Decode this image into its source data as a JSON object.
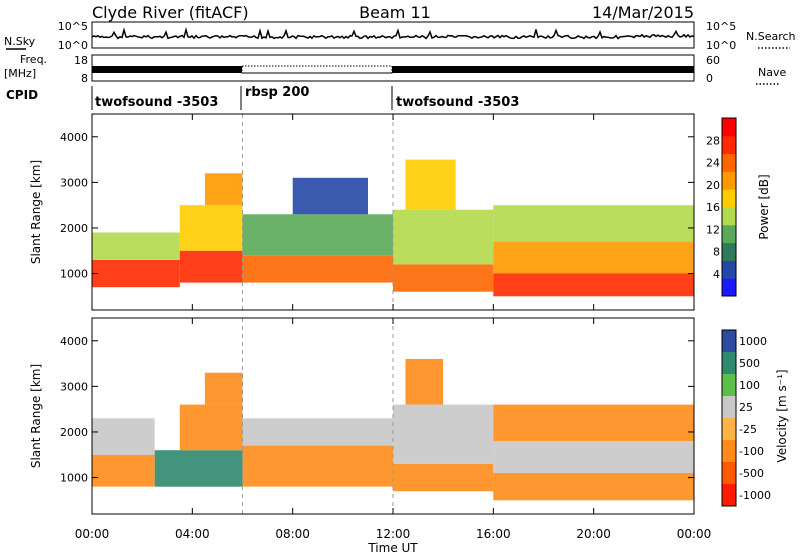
{
  "header": {
    "station": "Clyde River (fitACF)",
    "beam": "Beam 11",
    "date": "14/Mar/2015"
  },
  "sky_panel": {
    "left_label": "N.Sky",
    "right_label": "N.Search",
    "ticks_left": [
      "10^5",
      "10^0"
    ],
    "ticks_right": [
      "10^5",
      "10^0"
    ]
  },
  "freq_panel": {
    "left_label_1": "Freq.",
    "left_label_2": "[MHz]",
    "right_label": "Nave",
    "ticks_left": [
      "18",
      "8"
    ],
    "ticks_right": [
      "60",
      "0"
    ]
  },
  "cpid": {
    "label": "CPID",
    "segments": [
      {
        "name": "twofsound -3503",
        "start_hour": 0,
        "end_hour": 6
      },
      {
        "name": "rbsp 200",
        "start_hour": 6,
        "end_hour": 12
      },
      {
        "name": "twofsound -3503",
        "start_hour": 12,
        "end_hour": 24
      }
    ]
  },
  "colors": {
    "power_scale": [
      "#1a1aff",
      "#2448a6",
      "#2f7a5a",
      "#5aa85a",
      "#b3d94d",
      "#ffcc00",
      "#ff9900",
      "#ff6600",
      "#ff2a00",
      "#ff0000"
    ],
    "velocity_scale": [
      "#2b4aa0",
      "#2e8a6e",
      "#5bbf4a",
      "#c8c8c8",
      "#ffb347",
      "#ff8c1a",
      "#ff5a00",
      "#ff1a00"
    ]
  },
  "chart_data": [
    {
      "type": "heatmap",
      "panel": "power",
      "ylabel": "Slant Range [km]",
      "ylim": [
        200,
        4500
      ],
      "yticks": [
        "1000",
        "2000",
        "3000",
        "4000"
      ],
      "xlim": [
        0,
        24
      ],
      "colorbar_label": "Power [dB]",
      "colorbar_ticks": [
        "28",
        "24",
        "20",
        "16",
        "12",
        "8",
        "4"
      ],
      "colorbar_range": [
        0,
        32
      ],
      "bands": [
        {
          "x0": 0.0,
          "x1": 3.5,
          "y0": 700,
          "y1": 1300,
          "value": 26
        },
        {
          "x0": 0.0,
          "x1": 3.5,
          "y0": 1300,
          "y1": 1900,
          "value": 15
        },
        {
          "x0": 3.5,
          "x1": 6.0,
          "y0": 800,
          "y1": 1500,
          "value": 27
        },
        {
          "x0": 3.5,
          "x1": 6.0,
          "y0": 1500,
          "y1": 2500,
          "value": 16
        },
        {
          "x0": 4.5,
          "x1": 6.0,
          "y0": 2500,
          "y1": 3200,
          "value": 21
        },
        {
          "x0": 6.0,
          "x1": 12.0,
          "y0": 800,
          "y1": 1400,
          "value": 25
        },
        {
          "x0": 6.0,
          "x1": 12.0,
          "y0": 1400,
          "y1": 2300,
          "value": 11
        },
        {
          "x0": 8.0,
          "x1": 11.0,
          "y0": 2300,
          "y1": 3100,
          "value": 6
        },
        {
          "x0": 12.0,
          "x1": 16.0,
          "y0": 600,
          "y1": 1200,
          "value": 24
        },
        {
          "x0": 12.0,
          "x1": 16.0,
          "y0": 1200,
          "y1": 2400,
          "value": 13
        },
        {
          "x0": 12.5,
          "x1": 14.5,
          "y0": 2400,
          "y1": 3500,
          "value": 17
        },
        {
          "x0": 16.0,
          "x1": 24.0,
          "y0": 500,
          "y1": 1000,
          "value": 27
        },
        {
          "x0": 16.0,
          "x1": 24.0,
          "y0": 1000,
          "y1": 1700,
          "value": 20
        },
        {
          "x0": 16.0,
          "x1": 24.0,
          "y0": 1700,
          "y1": 2500,
          "value": 14
        }
      ]
    },
    {
      "type": "heatmap",
      "panel": "velocity",
      "ylabel": "Slant Range [km]",
      "ylim": [
        200,
        4500
      ],
      "yticks": [
        "1000",
        "2000",
        "3000",
        "4000"
      ],
      "xlim": [
        0,
        24
      ],
      "xticks": [
        "00:00",
        "04:00",
        "08:00",
        "12:00",
        "16:00",
        "20:00",
        "00:00"
      ],
      "xlabel": "Time UT",
      "colorbar_label": "Velocity [m s⁻¹]",
      "colorbar_ticks": [
        "1000",
        "500",
        "100",
        "25",
        "-25",
        "-100",
        "-500",
        "-1000"
      ],
      "bands": [
        {
          "x0": 0.0,
          "x1": 2.5,
          "y0": 800,
          "y1": 1500,
          "value": -150
        },
        {
          "x0": 0.0,
          "x1": 2.5,
          "y0": 1500,
          "y1": 2300,
          "value": 0
        },
        {
          "x0": 2.5,
          "x1": 6.0,
          "y0": 800,
          "y1": 1600,
          "value": 300
        },
        {
          "x0": 3.5,
          "x1": 6.0,
          "y0": 1600,
          "y1": 2600,
          "value": -200
        },
        {
          "x0": 4.5,
          "x1": 6.0,
          "y0": 2600,
          "y1": 3300,
          "value": -300
        },
        {
          "x0": 6.0,
          "x1": 12.0,
          "y0": 800,
          "y1": 1700,
          "value": -250
        },
        {
          "x0": 6.0,
          "x1": 12.0,
          "y0": 1700,
          "y1": 2300,
          "value": 0
        },
        {
          "x0": 12.0,
          "x1": 16.0,
          "y0": 700,
          "y1": 1300,
          "value": -200
        },
        {
          "x0": 12.0,
          "x1": 16.0,
          "y0": 1300,
          "y1": 2600,
          "value": 0
        },
        {
          "x0": 12.5,
          "x1": 14.0,
          "y0": 2600,
          "y1": 3600,
          "value": -300
        },
        {
          "x0": 16.0,
          "x1": 24.0,
          "y0": 500,
          "y1": 1100,
          "value": -400
        },
        {
          "x0": 16.0,
          "x1": 24.0,
          "y0": 1100,
          "y1": 1800,
          "value": 0
        },
        {
          "x0": 16.0,
          "x1": 24.0,
          "y0": 1800,
          "y1": 2600,
          "value": -150
        }
      ]
    }
  ]
}
